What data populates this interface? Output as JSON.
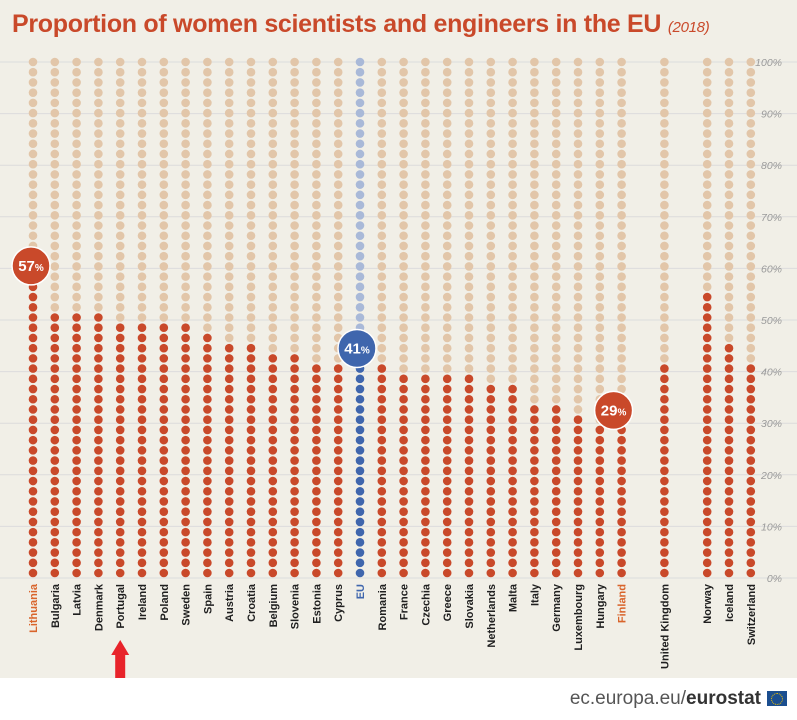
{
  "title": "Proportion of women scientists and engineers in the EU",
  "title_year": "(2018)",
  "footer": {
    "source_prefix": "ec.europa.eu/",
    "source_brand": "eurostat"
  },
  "colors": {
    "filled": "#c9492a",
    "empty": "#e2c6a9",
    "eu_filled": "#3f66ad",
    "eu_empty": "#a9b9d8",
    "label_highlight": "#d9642b",
    "label_normal": "#1f1f1f",
    "grid": "#dcdcdc",
    "arrow": "#e8232a"
  },
  "chart_data": {
    "type": "bar",
    "title": "Proportion of women scientists and engineers in the EU (2018)",
    "ylim": [
      0,
      100
    ],
    "y_ticks": [
      "0%",
      "10%",
      "20%",
      "30%",
      "40%",
      "50%",
      "60%",
      "70%",
      "80%",
      "90%",
      "100%"
    ],
    "categories": [
      "Lithuania",
      "Bulgaria",
      "Latvia",
      "Denmark",
      "Portugal",
      "Ireland",
      "Poland",
      "Sweden",
      "Spain",
      "Austria",
      "Croatia",
      "Belgium",
      "Slovenia",
      "Estonia",
      "Cyprus",
      "EU",
      "Romania",
      "France",
      "Czechia",
      "Greece",
      "Slovakia",
      "Netherlands",
      "Malta",
      "Italy",
      "Germany",
      "Luxembourg",
      "Hungary",
      "Finland",
      "United Kingdom",
      "Norway",
      "Iceland",
      "Switzerland"
    ],
    "values": [
      57,
      52,
      52,
      51,
      50,
      49,
      49,
      49,
      48,
      46,
      45,
      44,
      43,
      42,
      42,
      41,
      41,
      40,
      39,
      39,
      39,
      38,
      37,
      34,
      33,
      31,
      30,
      29,
      41,
      55,
      46,
      41
    ],
    "group_gaps_after": [
      "Finland",
      "United Kingdom"
    ],
    "highlighted_labels": [
      "Lithuania",
      "EU",
      "Finland"
    ],
    "callouts": [
      {
        "category": "Lithuania",
        "number": "57",
        "unit": "%"
      },
      {
        "category": "EU",
        "number": "41",
        "unit": "%"
      },
      {
        "category": "Finland",
        "number": "29",
        "unit": "%"
      }
    ],
    "pointer_arrow_category": "Portugal",
    "grid": true
  }
}
